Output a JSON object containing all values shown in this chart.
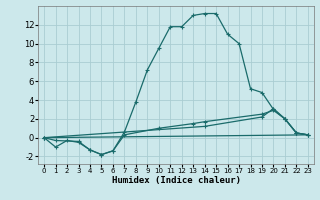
{
  "xlabel": "Humidex (Indice chaleur)",
  "background_color": "#cce8eb",
  "grid_color": "#aacdd2",
  "line_color": "#1a6b6b",
  "line1_x": [
    0,
    1,
    2,
    3,
    4,
    5,
    6,
    7,
    8,
    9,
    10,
    11,
    12,
    13,
    14,
    15,
    16,
    17,
    18,
    19,
    20,
    21,
    22,
    23
  ],
  "line1_y": [
    0,
    -1,
    -0.3,
    -0.5,
    -1.3,
    -1.8,
    -1.4,
    0.6,
    3.8,
    7.2,
    9.5,
    11.8,
    11.8,
    13.0,
    13.2,
    13.2,
    11.0,
    10.0,
    5.2,
    4.8,
    3.0,
    2.0,
    0.5,
    0.3
  ],
  "line2_x": [
    0,
    1,
    3,
    4,
    5,
    6,
    7,
    10,
    13,
    14,
    19,
    20,
    21,
    22,
    23
  ],
  "line2_y": [
    0,
    -0.3,
    -0.4,
    -1.3,
    -1.8,
    -1.4,
    0.3,
    1.0,
    1.5,
    1.7,
    2.5,
    2.9,
    2.0,
    0.5,
    0.3
  ],
  "line3_x": [
    0,
    14,
    19,
    20,
    21,
    22,
    23
  ],
  "line3_y": [
    0,
    1.2,
    2.2,
    3.1,
    2.0,
    0.5,
    0.3
  ],
  "line4_x": [
    0,
    23
  ],
  "line4_y": [
    0,
    0.3
  ],
  "xlim": [
    -0.5,
    23.5
  ],
  "ylim": [
    -2.8,
    14.0
  ],
  "yticks": [
    -2,
    0,
    2,
    4,
    6,
    8,
    10,
    12
  ],
  "xticks": [
    0,
    1,
    2,
    3,
    4,
    5,
    6,
    7,
    8,
    9,
    10,
    11,
    12,
    13,
    14,
    15,
    16,
    17,
    18,
    19,
    20,
    21,
    22,
    23
  ]
}
